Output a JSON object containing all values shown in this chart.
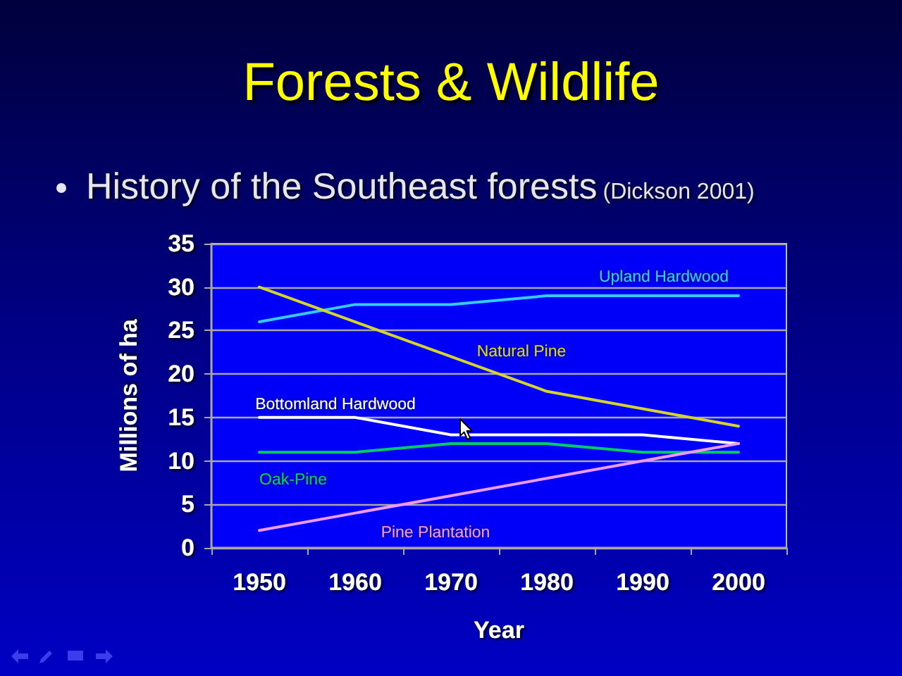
{
  "chart_data": {
    "type": "line",
    "title": "Forests & Wildlife",
    "subtitle": "History of the Southeast forests",
    "annotations": [
      "(Dickson 2001)"
    ],
    "xlabel": "Year",
    "ylabel": "Millions of ha",
    "categories": [
      "1950",
      "1960",
      "1970",
      "1980",
      "1990",
      "2000"
    ],
    "series": [
      {
        "name": "Upland Hardwood",
        "color": "#33ccff",
        "values": [
          26,
          28,
          28,
          29,
          29,
          29
        ]
      },
      {
        "name": "Natural Pine",
        "color": "#d4d42a",
        "values": [
          30,
          26,
          22,
          18,
          16,
          14
        ]
      },
      {
        "name": "Bottomland Hardwood",
        "color": "#ffffff",
        "values": [
          15,
          15,
          13,
          13,
          13,
          12
        ]
      },
      {
        "name": "Oak-Pine",
        "color": "#00cc66",
        "values": [
          11,
          11,
          12,
          12,
          11,
          11
        ]
      },
      {
        "name": "Pine Plantation",
        "color": "#ee99ff",
        "values": [
          2,
          4,
          6,
          8,
          10,
          12
        ]
      }
    ],
    "ylim": [
      0,
      35
    ],
    "yticks": [
      0,
      5,
      10,
      15,
      20,
      25,
      30,
      35
    ],
    "grid": "y",
    "marker": "none",
    "line_style": "solid"
  }
}
